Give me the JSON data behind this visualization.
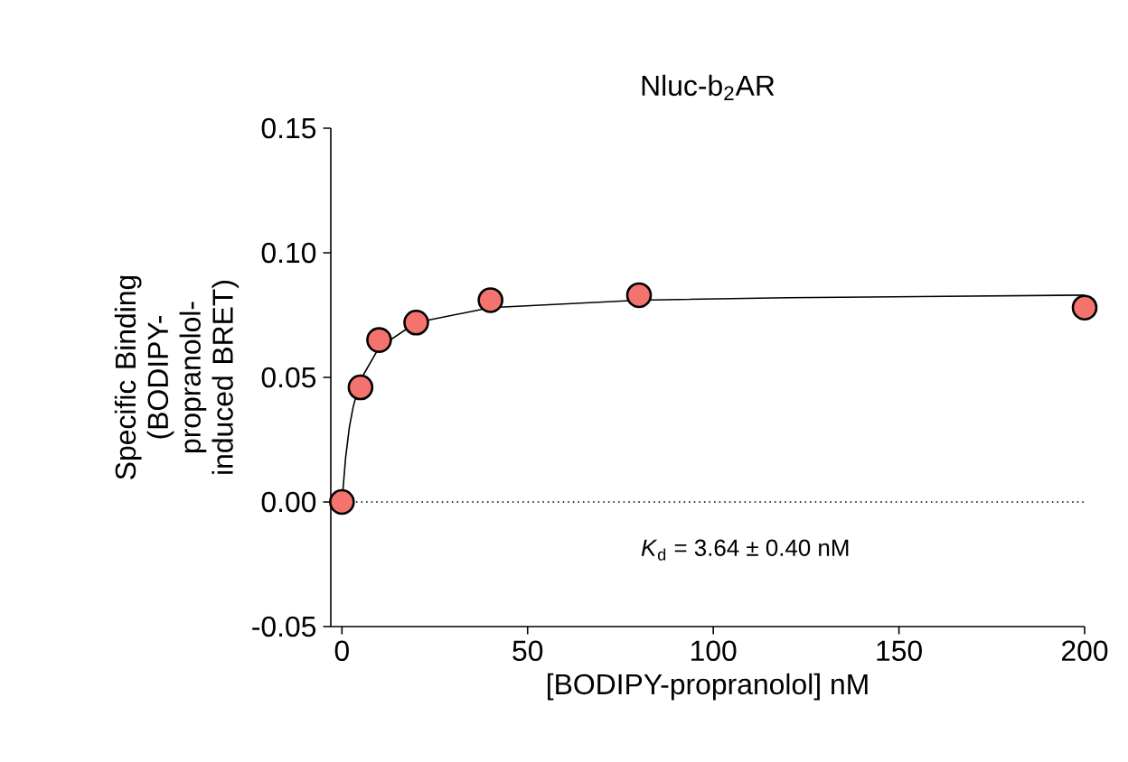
{
  "chart_data": {
    "type": "scatter",
    "title": "Nluc-b$_{2}$AR",
    "xlabel": "[BODIPY-propranolol] nM",
    "ylabel": "Specific Binding (BODIPY-propranolol-induced BRET)",
    "xlim": [
      -3,
      200
    ],
    "ylim": [
      -0.05,
      0.15
    ],
    "xticks": [
      0,
      50,
      100,
      150,
      200
    ],
    "yticks": [
      {
        "value": -0.05,
        "label": "-0.05"
      },
      {
        "value": 0,
        "label": "0.00"
      },
      {
        "value": 0.05,
        "label": "0.05"
      },
      {
        "value": 0.1,
        "label": "0.10"
      },
      {
        "value": 0.15,
        "label": "0.15"
      }
    ],
    "grid": false,
    "series": [
      {
        "type": "line",
        "color": "#000000",
        "marker": "none",
        "line_style": "solid",
        "x": [
          0,
          1,
          2,
          3,
          5,
          10,
          20,
          40,
          80,
          120,
          200
        ],
        "values": [
          0,
          0.018,
          0.03,
          0.038,
          0.049,
          0.062,
          0.072,
          0.078,
          0.081,
          0.082,
          0.083
        ]
      },
      {
        "color": "#f4736e",
        "marker": "circle",
        "x": [
          0,
          5,
          10,
          20,
          40,
          80,
          200
        ],
        "values": [
          0,
          0.046,
          0.065,
          0.072,
          0.081,
          0.083,
          0.078
        ]
      }
    ],
    "ref_lines": [
      {
        "axis": "y",
        "value": 0,
        "line_style": "dotted",
        "color": "#000000"
      }
    ],
    "annotations": [
      "*K*$_{d}$ = 3.64 ± 0.40 nM"
    ]
  }
}
